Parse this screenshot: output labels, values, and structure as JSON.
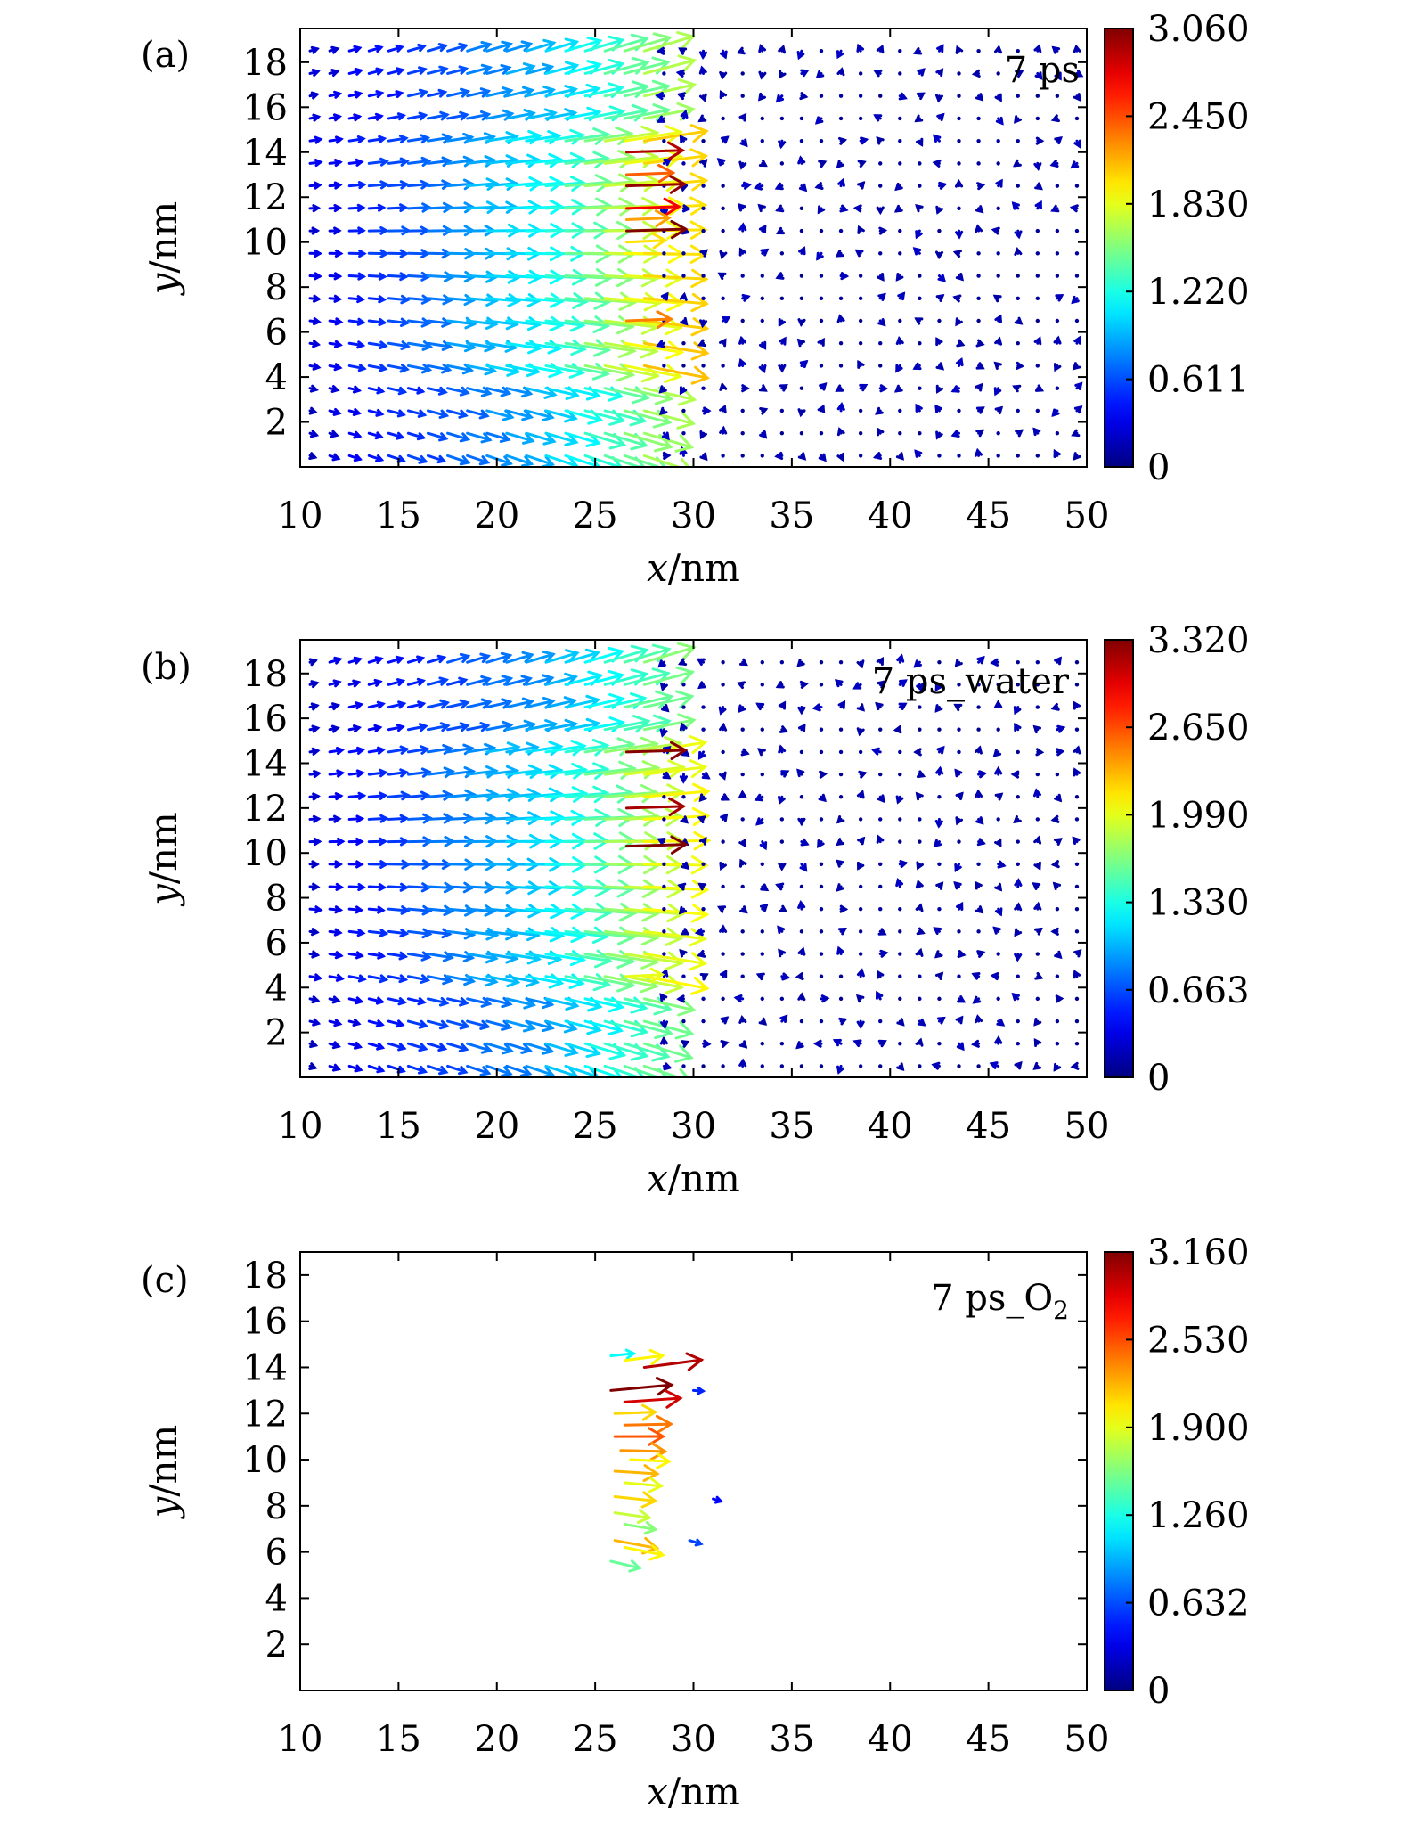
{
  "chart_data": [
    {
      "panel_label": "(a)",
      "type": "quiver",
      "annotation": "7 ps",
      "xlabel": "x/nm",
      "ylabel": "y/nm",
      "xlim": [
        10,
        50
      ],
      "ylim": [
        0,
        19.5
      ],
      "xticks": [
        "10",
        "15",
        "20",
        "25",
        "30",
        "35",
        "40",
        "45",
        "50"
      ],
      "yticks": [
        "2",
        "4",
        "6",
        "8",
        "10",
        "12",
        "14",
        "16",
        "18"
      ],
      "colorbar": {
        "min": 0,
        "max": 3.06,
        "ticks": [
          "0",
          "0.611",
          "1.220",
          "1.830",
          "2.450",
          "3.060"
        ]
      },
      "field": "full",
      "highlight_arrows": [
        {
          "y": 14.0,
          "mag": 2.9
        },
        {
          "y": 13.0,
          "mag": 2.4
        },
        {
          "y": 12.5,
          "mag": 3.0
        },
        {
          "y": 11.5,
          "mag": 2.7
        },
        {
          "y": 11.0,
          "mag": 2.2
        },
        {
          "y": 10.5,
          "mag": 3.06
        },
        {
          "y": 10.0,
          "mag": 2.0
        },
        {
          "y": 6.5,
          "mag": 2.3
        }
      ]
    },
    {
      "panel_label": "(b)",
      "type": "quiver",
      "annotation": "7 ps_water",
      "xlabel": "x/nm",
      "ylabel": "y/nm",
      "xlim": [
        10,
        50
      ],
      "ylim": [
        0,
        19.5
      ],
      "xticks": [
        "10",
        "15",
        "20",
        "25",
        "30",
        "35",
        "40",
        "45",
        "50"
      ],
      "yticks": [
        "2",
        "4",
        "6",
        "8",
        "10",
        "12",
        "14",
        "16",
        "18"
      ],
      "colorbar": {
        "min": 0,
        "max": 3.32,
        "ticks": [
          "0",
          "0.663",
          "1.330",
          "1.990",
          "2.650",
          "3.320"
        ]
      },
      "field": "full",
      "highlight_arrows": [
        {
          "y": 14.5,
          "mag": 3.3
        },
        {
          "y": 12.0,
          "mag": 3.2
        },
        {
          "y": 10.3,
          "mag": 3.32
        },
        {
          "y": 4.5,
          "mag": 2.0
        }
      ]
    },
    {
      "panel_label": "(c)",
      "type": "quiver",
      "annotation": "7 ps_O",
      "annotation_subscript": "2",
      "xlabel": "x/nm",
      "ylabel": "y/nm",
      "xlim": [
        10,
        50
      ],
      "ylim": [
        0,
        19
      ],
      "xticks": [
        "10",
        "15",
        "20",
        "25",
        "30",
        "35",
        "40",
        "45",
        "50"
      ],
      "yticks": [
        "2",
        "4",
        "6",
        "8",
        "10",
        "12",
        "14",
        "16",
        "18"
      ],
      "colorbar": {
        "min": 0,
        "max": 3.16,
        "ticks": [
          "0",
          "0.632",
          "1.260",
          "1.900",
          "2.530",
          "3.160"
        ]
      },
      "field": "front_only",
      "arrows": [
        {
          "x": 25.8,
          "y": 14.5,
          "mag": 1.2
        },
        {
          "x": 26.5,
          "y": 14.3,
          "mag": 2.0
        },
        {
          "x": 27.5,
          "y": 14.0,
          "mag": 3.0
        },
        {
          "x": 25.8,
          "y": 13.0,
          "mag": 3.16
        },
        {
          "x": 26.5,
          "y": 12.5,
          "mag": 2.9
        },
        {
          "x": 26.0,
          "y": 12.0,
          "mag": 2.1
        },
        {
          "x": 26.5,
          "y": 11.5,
          "mag": 2.4
        },
        {
          "x": 26.0,
          "y": 11.0,
          "mag": 2.5
        },
        {
          "x": 26.3,
          "y": 10.4,
          "mag": 2.3
        },
        {
          "x": 26.8,
          "y": 10.0,
          "mag": 2.0
        },
        {
          "x": 26.0,
          "y": 9.5,
          "mag": 2.2
        },
        {
          "x": 26.5,
          "y": 9.0,
          "mag": 1.9
        },
        {
          "x": 26.0,
          "y": 8.4,
          "mag": 2.1
        },
        {
          "x": 26.0,
          "y": 7.7,
          "mag": 1.8
        },
        {
          "x": 26.5,
          "y": 7.2,
          "mag": 1.6
        },
        {
          "x": 26.0,
          "y": 6.5,
          "mag": 2.2
        },
        {
          "x": 26.5,
          "y": 6.2,
          "mag": 2.0
        },
        {
          "x": 25.8,
          "y": 5.6,
          "mag": 1.5
        },
        {
          "x": 29.8,
          "y": 6.5,
          "mag": 0.6
        },
        {
          "x": 30.0,
          "y": 13.0,
          "mag": 0.5
        },
        {
          "x": 31.0,
          "y": 8.3,
          "mag": 0.4
        }
      ]
    }
  ]
}
